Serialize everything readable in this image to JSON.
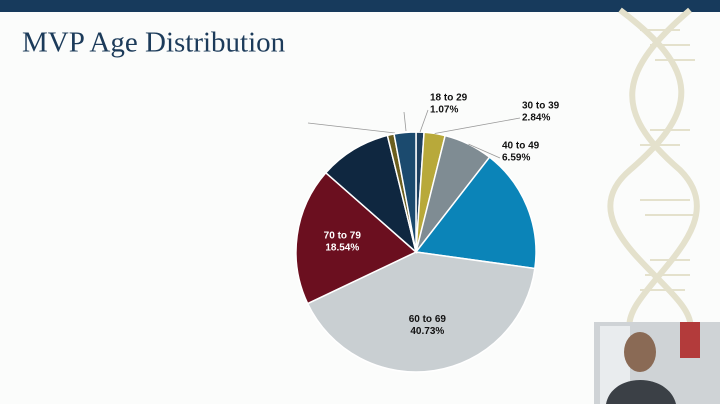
{
  "chart_data": {
    "type": "pie",
    "title": "MVP Age Distribution",
    "categories": [
      "18 to 29",
      "30 to 39",
      "40 to 49",
      null,
      "60 to 69",
      "70 to 79",
      null,
      null,
      null
    ],
    "values": [
      1.07,
      2.84,
      6.59,
      16.7,
      40.73,
      18.54,
      9.7,
      0.9,
      2.93
    ],
    "value_labels": [
      "1.07%",
      "2.84%",
      "6.59%",
      null,
      "40.73%",
      "18.54%",
      null,
      null,
      null
    ],
    "colors": [
      "#1d3f5e",
      "#b8a93a",
      "#7f8c93",
      "#0b84b8",
      "#c9cfd2",
      "#6b0f1f",
      "#0f2740",
      "#6b5e1e",
      "#1b4a6e"
    ]
  }
}
